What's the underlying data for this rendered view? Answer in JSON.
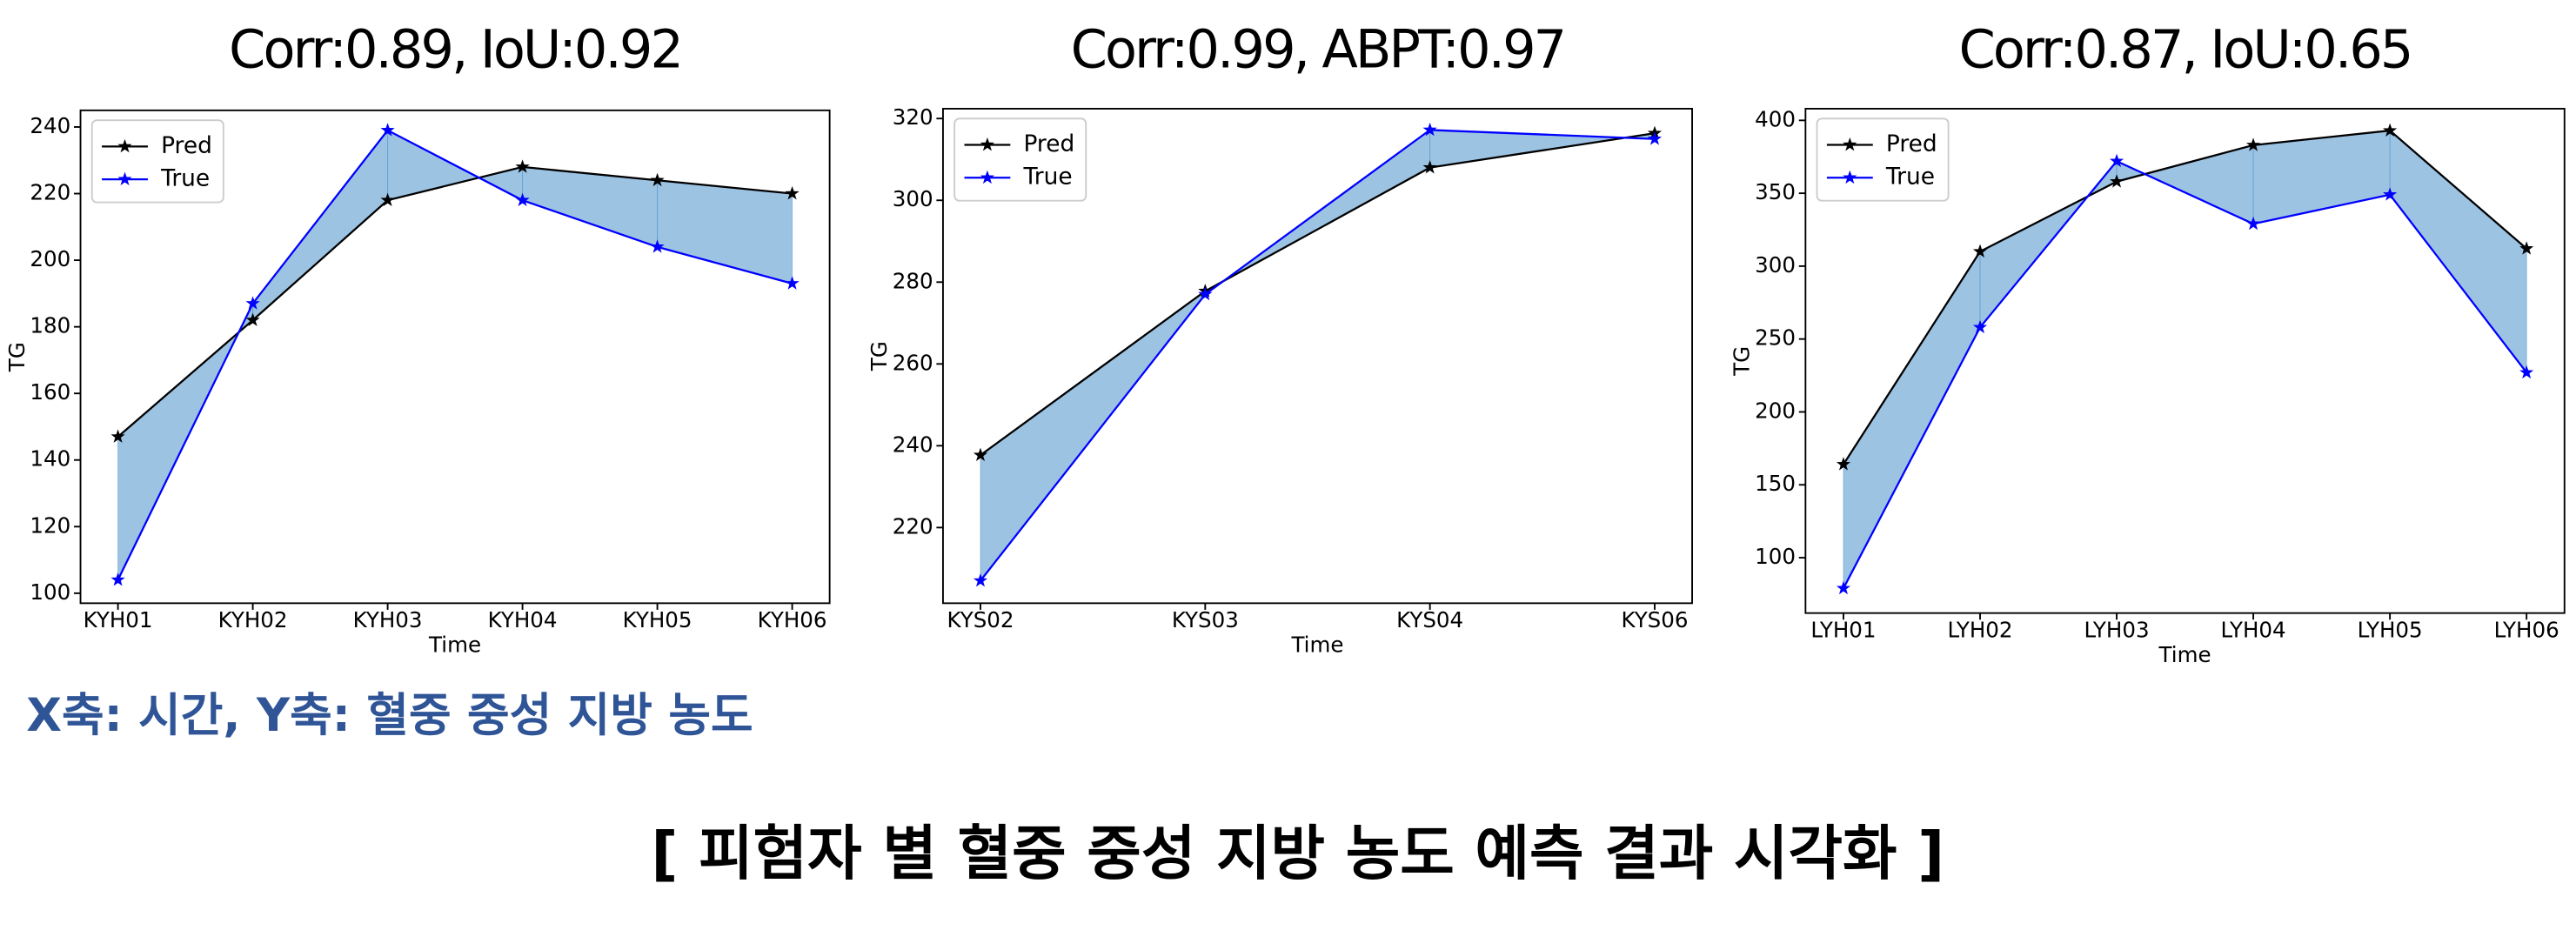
{
  "chart_data": [
    {
      "type": "line",
      "title": "Corr:0.89, IoU:0.92",
      "x_label": "Time",
      "y_label": "TG",
      "categories": [
        "KYH01",
        "KYH02",
        "KYH03",
        "KYH04",
        "KYH05",
        "KYH06"
      ],
      "series": [
        {
          "name": "Pred",
          "color": "#000000",
          "values": [
            147,
            182,
            218,
            228,
            224,
            220
          ]
        },
        {
          "name": "True",
          "color": "#0000ff",
          "values": [
            104,
            187,
            239,
            218,
            204,
            193
          ]
        }
      ],
      "ylim": [
        97,
        245
      ],
      "yticks": [
        100,
        120,
        140,
        160,
        180,
        200,
        220,
        240
      ],
      "legend": "upper left",
      "fill_between": true,
      "fill_color": "#5b9bd0"
    },
    {
      "type": "line",
      "title": "Corr:0.99, ABPT:0.97",
      "x_label": "Time",
      "y_label": "TG",
      "categories": [
        "KYS02",
        "KYS03",
        "KYS04",
        "KYS06"
      ],
      "series": [
        {
          "name": "Pred",
          "color": "#000000",
          "values": [
            237.7,
            277.8,
            308,
            316.4
          ]
        },
        {
          "name": "True",
          "color": "#0000ff",
          "values": [
            207,
            277,
            317.2,
            315
          ]
        }
      ],
      "ylim": [
        201.5,
        322.4
      ],
      "yticks": [
        220,
        240,
        260,
        280,
        300,
        320
      ],
      "legend": "upper left",
      "fill_between": true,
      "fill_color": "#5b9bd0"
    },
    {
      "type": "line",
      "title": "Corr:0.87, IoU:0.65",
      "x_label": "Time",
      "y_label": "TG",
      "categories": [
        "LYH01",
        "LYH02",
        "LYH03",
        "LYH04",
        "LYH05",
        "LYH06"
      ],
      "series": [
        {
          "name": "Pred",
          "color": "#000000",
          "values": [
            164,
            310,
            358,
            383,
            393,
            312
          ]
        },
        {
          "name": "True",
          "color": "#0000ff",
          "values": [
            79,
            258,
            372,
            329,
            349,
            227
          ]
        }
      ],
      "ylim": [
        62,
        408
      ],
      "yticks": [
        100,
        150,
        200,
        250,
        300,
        350,
        400
      ],
      "legend": "upper left",
      "fill_between": true,
      "fill_color": "#5b9bd0"
    }
  ],
  "note": "X축: 시간, Y축: 혈중 중성 지방 농도",
  "caption": "[ 피험자 별 혈중 중성 지방 농도 예측 결과 시각화  ]"
}
